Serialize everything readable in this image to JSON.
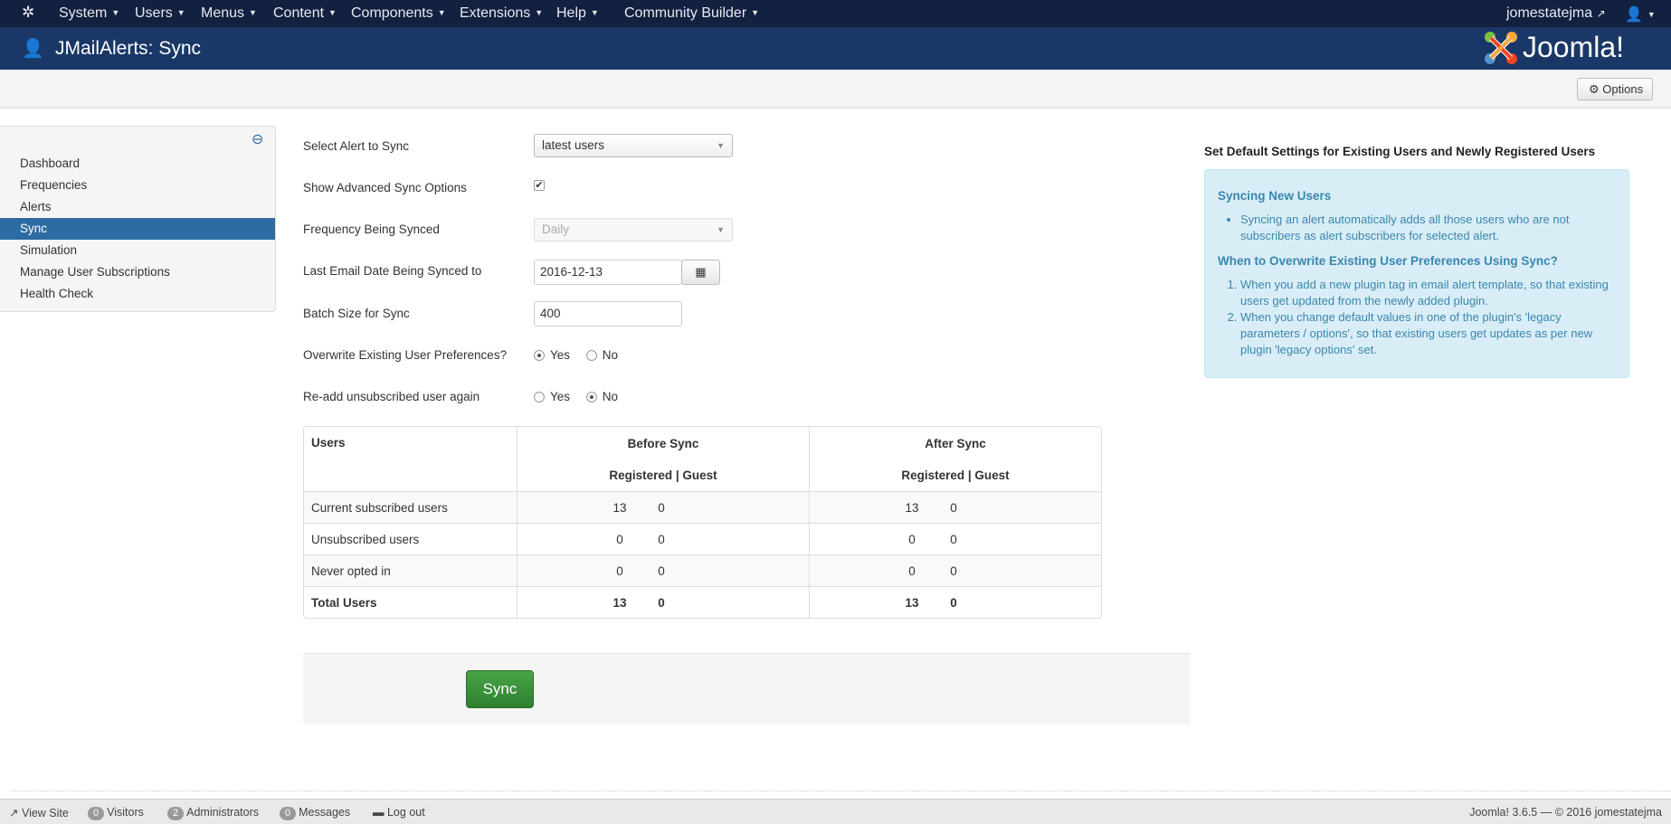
{
  "navbar": {
    "menus": [
      "System",
      "Users",
      "Menus",
      "Content",
      "Components",
      "Extensions",
      "Help",
      "Community Builder"
    ],
    "site_link": "jomestatejma"
  },
  "header": {
    "title": "JMailAlerts: Sync",
    "logo_text": "Joomla!"
  },
  "toolbar": {
    "options_label": "Options"
  },
  "sidebar": {
    "items": [
      {
        "label": "Dashboard"
      },
      {
        "label": "Frequencies"
      },
      {
        "label": "Alerts"
      },
      {
        "label": "Sync",
        "active": true
      },
      {
        "label": "Simulation"
      },
      {
        "label": "Manage User Subscriptions"
      },
      {
        "label": "Health Check"
      }
    ]
  },
  "form": {
    "alert_label": "Select Alert to Sync",
    "alert_value": "latest users",
    "advanced_label": "Show Advanced Sync Options",
    "advanced_checked": true,
    "frequency_label": "Frequency Being Synced",
    "frequency_value": "Daily",
    "date_label": "Last Email Date Being Synced to",
    "date_value": "2016-12-13",
    "batch_label": "Batch Size for Sync",
    "batch_value": "400",
    "overwrite_label": "Overwrite Existing User Preferences?",
    "overwrite_value": "Yes",
    "readd_label": "Re-add unsubscribed user again",
    "readd_value": "No",
    "yes": "Yes",
    "no": "No"
  },
  "table": {
    "headers": {
      "users": "Users",
      "before": "Before Sync",
      "after": "After Sync",
      "sub": "Registered | Guest"
    },
    "rows": [
      {
        "label": "Current subscribed users",
        "before": [
          "13",
          "0"
        ],
        "after": [
          "13",
          "0"
        ]
      },
      {
        "label": "Unsubscribed users",
        "before": [
          "0",
          "0"
        ],
        "after": [
          "0",
          "0"
        ]
      },
      {
        "label": "Never opted in",
        "before": [
          "0",
          "0"
        ],
        "after": [
          "0",
          "0"
        ]
      },
      {
        "label": "Total Users",
        "before": [
          "13",
          "0"
        ],
        "after": [
          "13",
          "0"
        ]
      }
    ]
  },
  "sync_button": "Sync",
  "info": {
    "title": "Set Default Settings for Existing Users and Newly Registered Users",
    "h1": "Syncing New Users",
    "b1": "Syncing an alert automatically adds all those users who are not subscribers as alert subscribers for selected alert.",
    "h2": "When to Overwrite Existing User Preferences Using Sync?",
    "o1": "When you add a new plugin tag in email alert template, so that existing users get updated from the newly added plugin.",
    "o2": "When you change default values in one of the plugin's 'legacy parameters / options', so that existing users get updates as per new plugin 'legacy options' set."
  },
  "footer": {
    "view_site": "View Site",
    "visitors_count": "0",
    "visitors": "Visitors",
    "admins_count": "2",
    "admins": "Administrators",
    "messages_count": "0",
    "messages": "Messages",
    "logout": "Log out",
    "version": "Joomla! 3.6.5  —  © 2016 jomestatejma"
  }
}
